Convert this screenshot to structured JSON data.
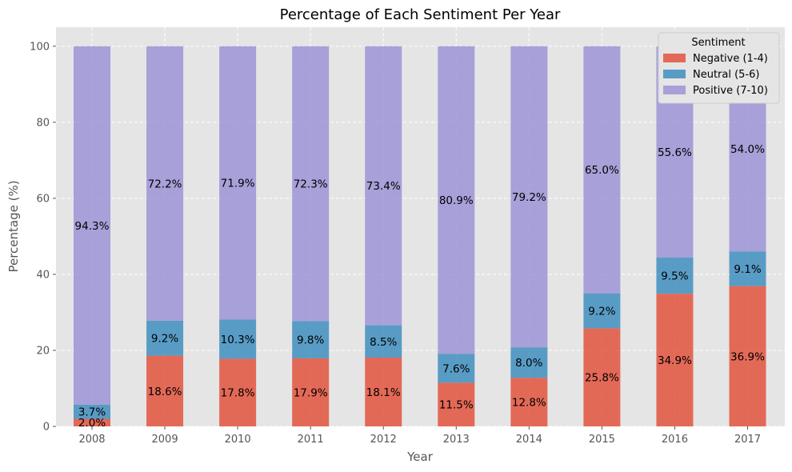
{
  "chart_data": {
    "type": "bar",
    "stacked": true,
    "title": "Percentage of Each Sentiment Per Year",
    "xlabel": "Year",
    "ylabel": "Percentage (%)",
    "ylim": [
      0,
      105
    ],
    "yticks": [
      0,
      20,
      40,
      60,
      80,
      100
    ],
    "grid": true,
    "legend_position": "top-right",
    "legend_title": "Sentiment",
    "categories": [
      "2008",
      "2009",
      "2010",
      "2011",
      "2012",
      "2013",
      "2014",
      "2015",
      "2016",
      "2017"
    ],
    "series": [
      {
        "name": "Negative (1-4)",
        "color": "#e24a33",
        "values": [
          2.0,
          18.6,
          17.8,
          17.9,
          18.1,
          11.5,
          12.8,
          25.8,
          34.9,
          36.9
        ],
        "labels": [
          "2.0%",
          "18.6%",
          "17.8%",
          "17.9%",
          "18.1%",
          "11.5%",
          "12.8%",
          "25.8%",
          "34.9%",
          "36.9%"
        ]
      },
      {
        "name": "Neutral (5-6)",
        "color": "#348abd",
        "values": [
          3.7,
          9.2,
          10.3,
          9.8,
          8.5,
          7.6,
          8.0,
          9.2,
          9.5,
          9.1
        ],
        "labels": [
          "3.7%",
          "9.2%",
          "10.3%",
          "9.8%",
          "8.5%",
          "7.6%",
          "8.0%",
          "9.2%",
          "9.5%",
          "9.1%"
        ]
      },
      {
        "name": "Positive (7-10)",
        "color": "#988ed5",
        "values": [
          94.3,
          72.2,
          71.9,
          72.3,
          73.4,
          80.9,
          79.2,
          65.0,
          55.6,
          54.0
        ],
        "labels": [
          "94.3%",
          "72.2%",
          "71.9%",
          "72.3%",
          "73.4%",
          "80.9%",
          "79.2%",
          "65.0%",
          "55.6%",
          "54.0%"
        ]
      }
    ]
  }
}
